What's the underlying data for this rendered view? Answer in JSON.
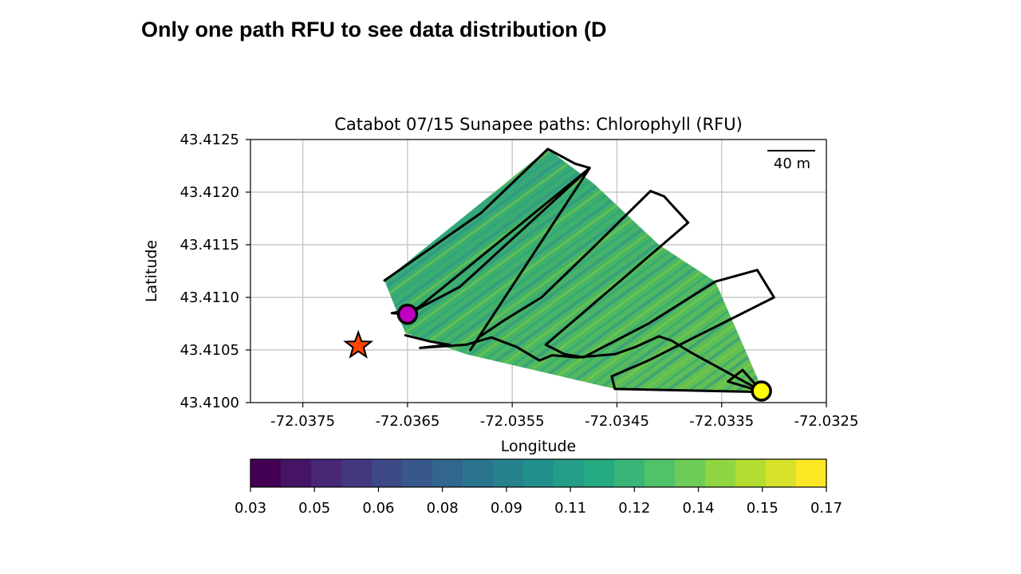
{
  "slide": {
    "title": "Only one path RFU to see data distribution (D"
  },
  "chart_data": {
    "type": "heatmap",
    "title": "Catabot 07/15 Sunapee paths: Chlorophyll (RFU)",
    "xlabel": "Longitude",
    "ylabel": "Latitude",
    "xlim": [
      -72.038,
      -72.0325
    ],
    "ylim": [
      43.41,
      43.4125
    ],
    "xticks": [
      "-72.0375",
      "-72.0365",
      "-72.0355",
      "-72.0345",
      "-72.0335",
      "-72.0325"
    ],
    "yticks": [
      "43.4125",
      "43.4120",
      "43.4115",
      "43.4110",
      "43.4105",
      "43.4100"
    ],
    "grid": true,
    "scalebar_label": "40 m",
    "colorbar": {
      "colormap": "viridis",
      "range": [
        0.03,
        0.17
      ],
      "tick_labels": [
        "0.03",
        "0.05",
        "0.06",
        "0.08",
        "0.09",
        "0.11",
        "0.12",
        "0.14",
        "0.15",
        "0.17"
      ],
      "levels": 19
    },
    "markers": [
      {
        "name": "start",
        "shape": "circle",
        "color": "#c000c0",
        "lon": -72.0365,
        "lat": 43.41084
      },
      {
        "name": "end",
        "shape": "circle",
        "color": "#ffff00",
        "lon": -72.03312,
        "lat": 43.41011
      },
      {
        "name": "station",
        "shape": "star",
        "color": "#ff4500",
        "lon": -72.03697,
        "lat": 43.41054
      }
    ],
    "survey_hull": [
      [
        -72.03672,
        43.41116
      ],
      [
        -72.03516,
        43.41241
      ],
      [
        -72.03472,
        43.41208
      ],
      [
        -72.0341,
        43.4115
      ],
      [
        -72.03356,
        43.41115
      ],
      [
        -72.0331,
        43.4101
      ],
      [
        -72.03452,
        43.41013
      ],
      [
        -72.03594,
        43.41046
      ],
      [
        -72.03652,
        43.41066
      ]
    ],
    "path": [
      [
        -72.03672,
        43.41116
      ],
      [
        -72.0358,
        43.4118
      ],
      [
        -72.03516,
        43.41241
      ],
      [
        -72.0349,
        43.41227
      ],
      [
        -72.03476,
        43.41223
      ],
      [
        -72.0364,
        43.4109
      ],
      [
        -72.03665,
        43.41085
      ],
      [
        -72.0365,
        43.41084
      ],
      [
        -72.036,
        43.4111
      ],
      [
        -72.03545,
        43.4116
      ],
      [
        -72.03476,
        43.41223
      ],
      [
        -72.0359,
        43.4105
      ],
      [
        -72.03582,
        43.41062
      ],
      [
        -72.03558,
        43.41078
      ],
      [
        -72.03522,
        43.411
      ],
      [
        -72.0347,
        43.4115
      ],
      [
        -72.03418,
        43.41201
      ],
      [
        -72.03405,
        43.41196
      ],
      [
        -72.03382,
        43.41171
      ],
      [
        -72.03518,
        43.41055
      ],
      [
        -72.035,
        43.41046
      ],
      [
        -72.03482,
        43.41043
      ],
      [
        -72.0342,
        43.41075
      ],
      [
        -72.03356,
        43.41115
      ],
      [
        -72.03316,
        43.41126
      ],
      [
        -72.033,
        43.411
      ],
      [
        -72.0342,
        43.4104
      ],
      [
        -72.03455,
        43.41025
      ],
      [
        -72.03452,
        43.41013
      ],
      [
        -72.0331,
        43.4101
      ],
      [
        -72.03344,
        43.4102
      ],
      [
        -72.0333,
        43.41031
      ],
      [
        -72.03322,
        43.41022
      ],
      [
        -72.03312,
        43.41011
      ],
      [
        -72.0338,
        43.41048
      ],
      [
        -72.03398,
        43.41059
      ],
      [
        -72.0341,
        43.41063
      ],
      [
        -72.03432,
        43.41053
      ],
      [
        -72.03452,
        43.41046
      ],
      [
        -72.03488,
        43.41043
      ],
      [
        -72.03512,
        43.41045
      ],
      [
        -72.03524,
        43.4104
      ],
      [
        -72.03546,
        43.41053
      ],
      [
        -72.0357,
        43.41062
      ],
      [
        -72.03594,
        43.41055
      ],
      [
        -72.03638,
        43.41052
      ],
      [
        -72.0361,
        43.41055
      ],
      [
        -72.03628,
        43.41058
      ],
      [
        -72.03652,
        43.41064
      ]
    ]
  }
}
